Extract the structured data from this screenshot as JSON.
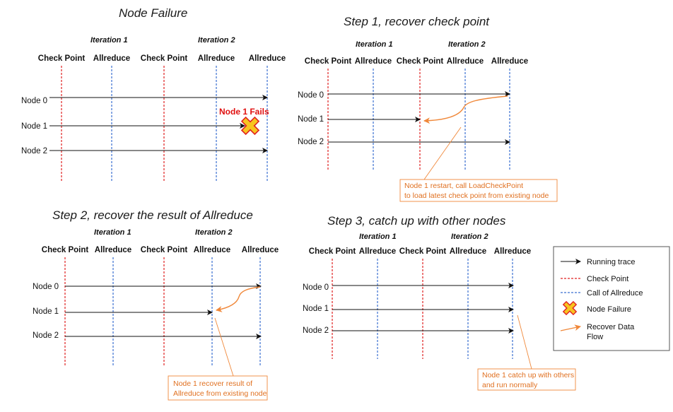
{
  "panels": {
    "p1": {
      "title": "Node Failure",
      "iteration1": "Iteration 1",
      "iteration2": "Iteration 2",
      "columns": [
        "Check Point",
        "Allreduce",
        "Check Point",
        "Allreduce",
        "Allreduce"
      ],
      "nodes": [
        "Node 0",
        "Node 1",
        "Node 2"
      ],
      "fail_label": "Node 1 Fails"
    },
    "p2": {
      "title": "Step 1, recover check point",
      "iteration1": "Iteration 1",
      "iteration2": "Iteration 2",
      "columns": [
        "Check Point",
        "Allreduce",
        "Check Point",
        "Allreduce",
        "Allreduce"
      ],
      "nodes": [
        "Node 0",
        "Node 1",
        "Node 2"
      ],
      "note": [
        "Node 1 restart, call LoadCheckPoint",
        "to load latest check point  from existing node"
      ]
    },
    "p3": {
      "title": "Step 2, recover the result of Allreduce",
      "iteration1": "Iteration 1",
      "iteration2": "Iteration 2",
      "columns": [
        "Check Point",
        "Allreduce",
        "Check Point",
        "Allreduce",
        "Allreduce"
      ],
      "nodes": [
        "Node 0",
        "Node 1",
        "Node 2"
      ],
      "note": [
        "Node 1 recover result of",
        "Allreduce from existing node"
      ]
    },
    "p4": {
      "title": "Step 3, catch up with other nodes",
      "iteration1": "Iteration 1",
      "iteration2": "Iteration 2",
      "columns": [
        "Check Point",
        "Allreduce",
        "Check Point",
        "Allreduce",
        "Allreduce"
      ],
      "nodes": [
        "Node 0",
        "Node 1",
        "Node 2"
      ],
      "note": [
        "Node 1 catch up with others",
        "and run normally"
      ]
    }
  },
  "legend": {
    "running_trace": "Running trace",
    "check_point": "Check Point",
    "call_allreduce": "Call of Allreduce",
    "node_failure": "Node Failure",
    "recover_line1": "Recover Data",
    "recover_line2": "Flow"
  },
  "colors": {
    "checkpoint": "#e02020",
    "allreduce": "#3a6fd0",
    "trace": "#111111",
    "recover": "#f0883a",
    "fail_fill": "#f7c520",
    "fail_text": "#e01010"
  }
}
